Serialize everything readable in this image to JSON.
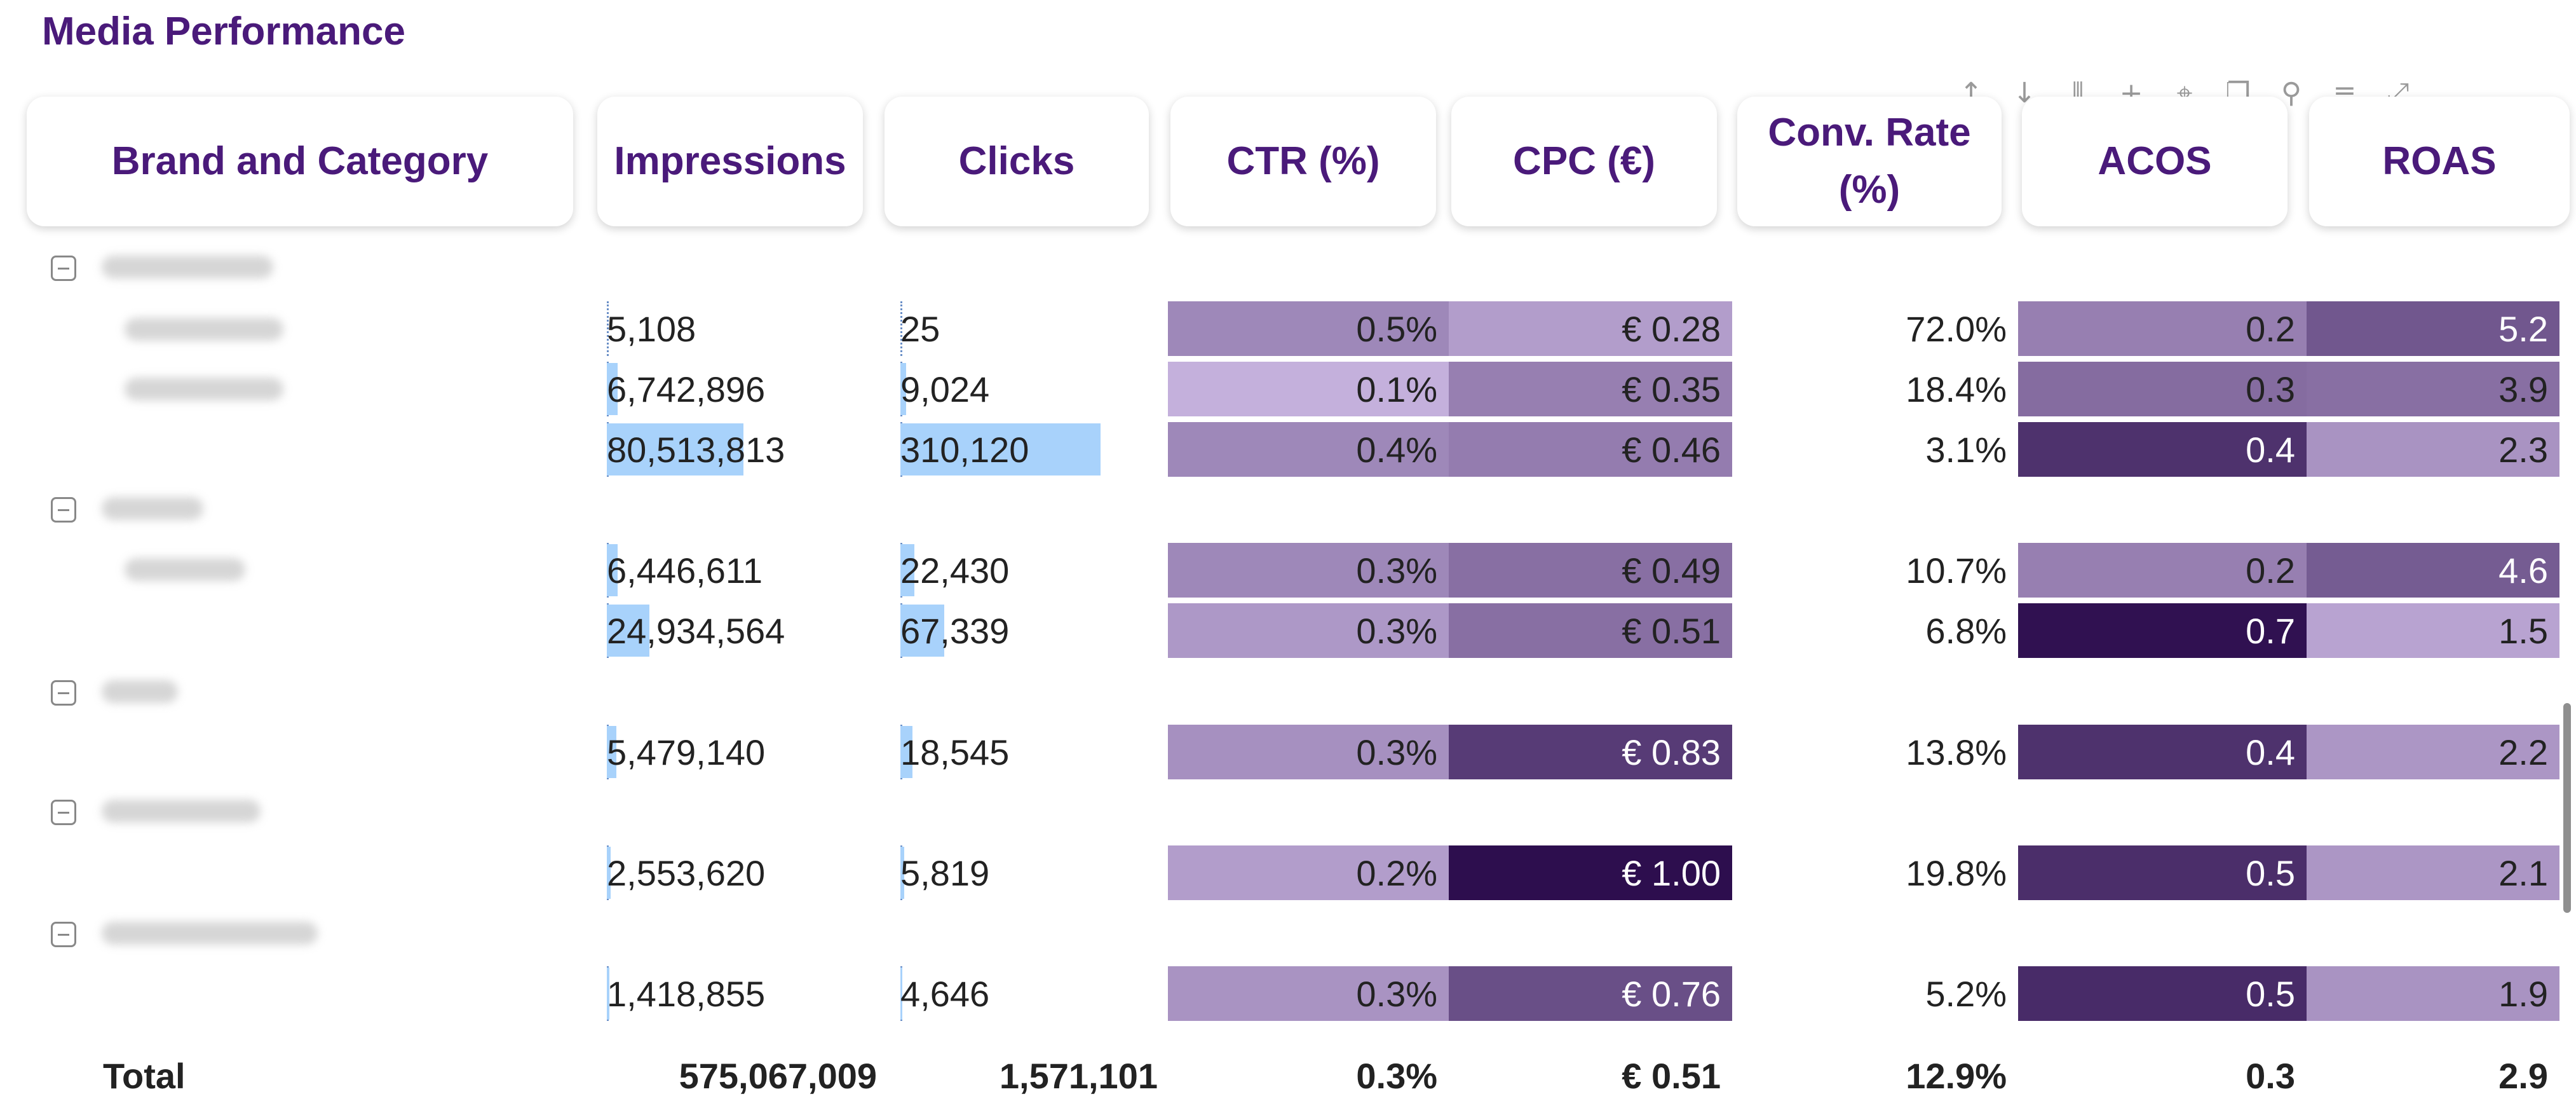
{
  "title": "Media Performance",
  "toolbar_icons": [
    "up-arrow-icon",
    "down-arrow-icon",
    "split-icon",
    "plus-icon",
    "pin-icon",
    "copy-icon",
    "search-icon",
    "filter-icon",
    "expand-icon",
    "more-icon"
  ],
  "headers": {
    "brand": "Brand and Category",
    "impressions": "Impressions",
    "clicks": "Clicks",
    "ctr": "CTR (%)",
    "cpc": "CPC (€)",
    "conv_line1": "Conv. Rate",
    "conv_line2": "(%)",
    "acos": "ACOS",
    "roas": "ROAS"
  },
  "colors": {
    "title": "#4a1a7a",
    "bar": "#a8d2fb",
    "heat_light": "#c4b0dc",
    "heat_dark": "#2d0e4e"
  },
  "rows": [
    {
      "impressions": "5,108",
      "imp_frac": 0.0,
      "clicks": "25",
      "clk_frac": 0.0,
      "ctr": "0.5%",
      "cpc": "€ 0.28",
      "conv": "72.0%",
      "acos": "0.2",
      "roas": "5.2"
    },
    {
      "impressions": "6,742,896",
      "imp_frac": 0.08,
      "clicks": "9,024",
      "clk_frac": 0.03,
      "ctr": "0.1%",
      "cpc": "€ 0.35",
      "conv": "18.4%",
      "acos": "0.3",
      "roas": "3.9"
    },
    {
      "impressions": "80,513,813",
      "imp_frac": 1.0,
      "clicks": "310,120",
      "clk_frac": 1.0,
      "ctr": "0.4%",
      "cpc": "€ 0.46",
      "conv": "3.1%",
      "acos": "0.4",
      "roas": "2.3"
    },
    {
      "impressions": "6,446,611",
      "imp_frac": 0.08,
      "clicks": "22,430",
      "clk_frac": 0.07,
      "ctr": "0.3%",
      "cpc": "€ 0.49",
      "conv": "10.7%",
      "acos": "0.2",
      "roas": "4.6"
    },
    {
      "impressions": "24,934,564",
      "imp_frac": 0.31,
      "clicks": "67,339",
      "clk_frac": 0.22,
      "ctr": "0.3%",
      "cpc": "€ 0.51",
      "conv": "6.8%",
      "acos": "0.7",
      "roas": "1.5"
    },
    {
      "impressions": "5,479,140",
      "imp_frac": 0.07,
      "clicks": "18,545",
      "clk_frac": 0.06,
      "ctr": "0.3%",
      "cpc": "€ 0.83",
      "conv": "13.8%",
      "acos": "0.4",
      "roas": "2.2"
    },
    {
      "impressions": "2,553,620",
      "imp_frac": 0.03,
      "clicks": "5,819",
      "clk_frac": 0.02,
      "ctr": "0.2%",
      "cpc": "€ 1.00",
      "conv": "19.8%",
      "acos": "0.5",
      "roas": "2.1"
    },
    {
      "impressions": "1,418,855",
      "imp_frac": 0.02,
      "clicks": "4,646",
      "clk_frac": 0.01,
      "ctr": "0.3%",
      "cpc": "€ 0.76",
      "conv": "5.2%",
      "acos": "0.5",
      "roas": "1.9"
    }
  ],
  "heat_levels": {
    "ctr": [
      0.25,
      0.0,
      0.25,
      0.25,
      0.15,
      0.2,
      0.12,
      0.18
    ],
    "cpc": [
      0.12,
      0.3,
      0.32,
      0.4,
      0.4,
      0.72,
      1.0,
      0.6
    ],
    "acos": [
      0.3,
      0.42,
      0.78,
      0.3,
      0.98,
      0.78,
      0.8,
      0.82
    ],
    "roas": [
      0.55,
      0.4,
      0.18,
      0.52,
      0.08,
      0.16,
      0.16,
      0.18
    ]
  },
  "total": {
    "label": "Total",
    "impressions": "575,067,009",
    "clicks": "1,571,101",
    "ctr": "0.3%",
    "cpc": "€ 0.51",
    "conv": "12.9%",
    "acos": "0.3",
    "roas": "2.9"
  }
}
